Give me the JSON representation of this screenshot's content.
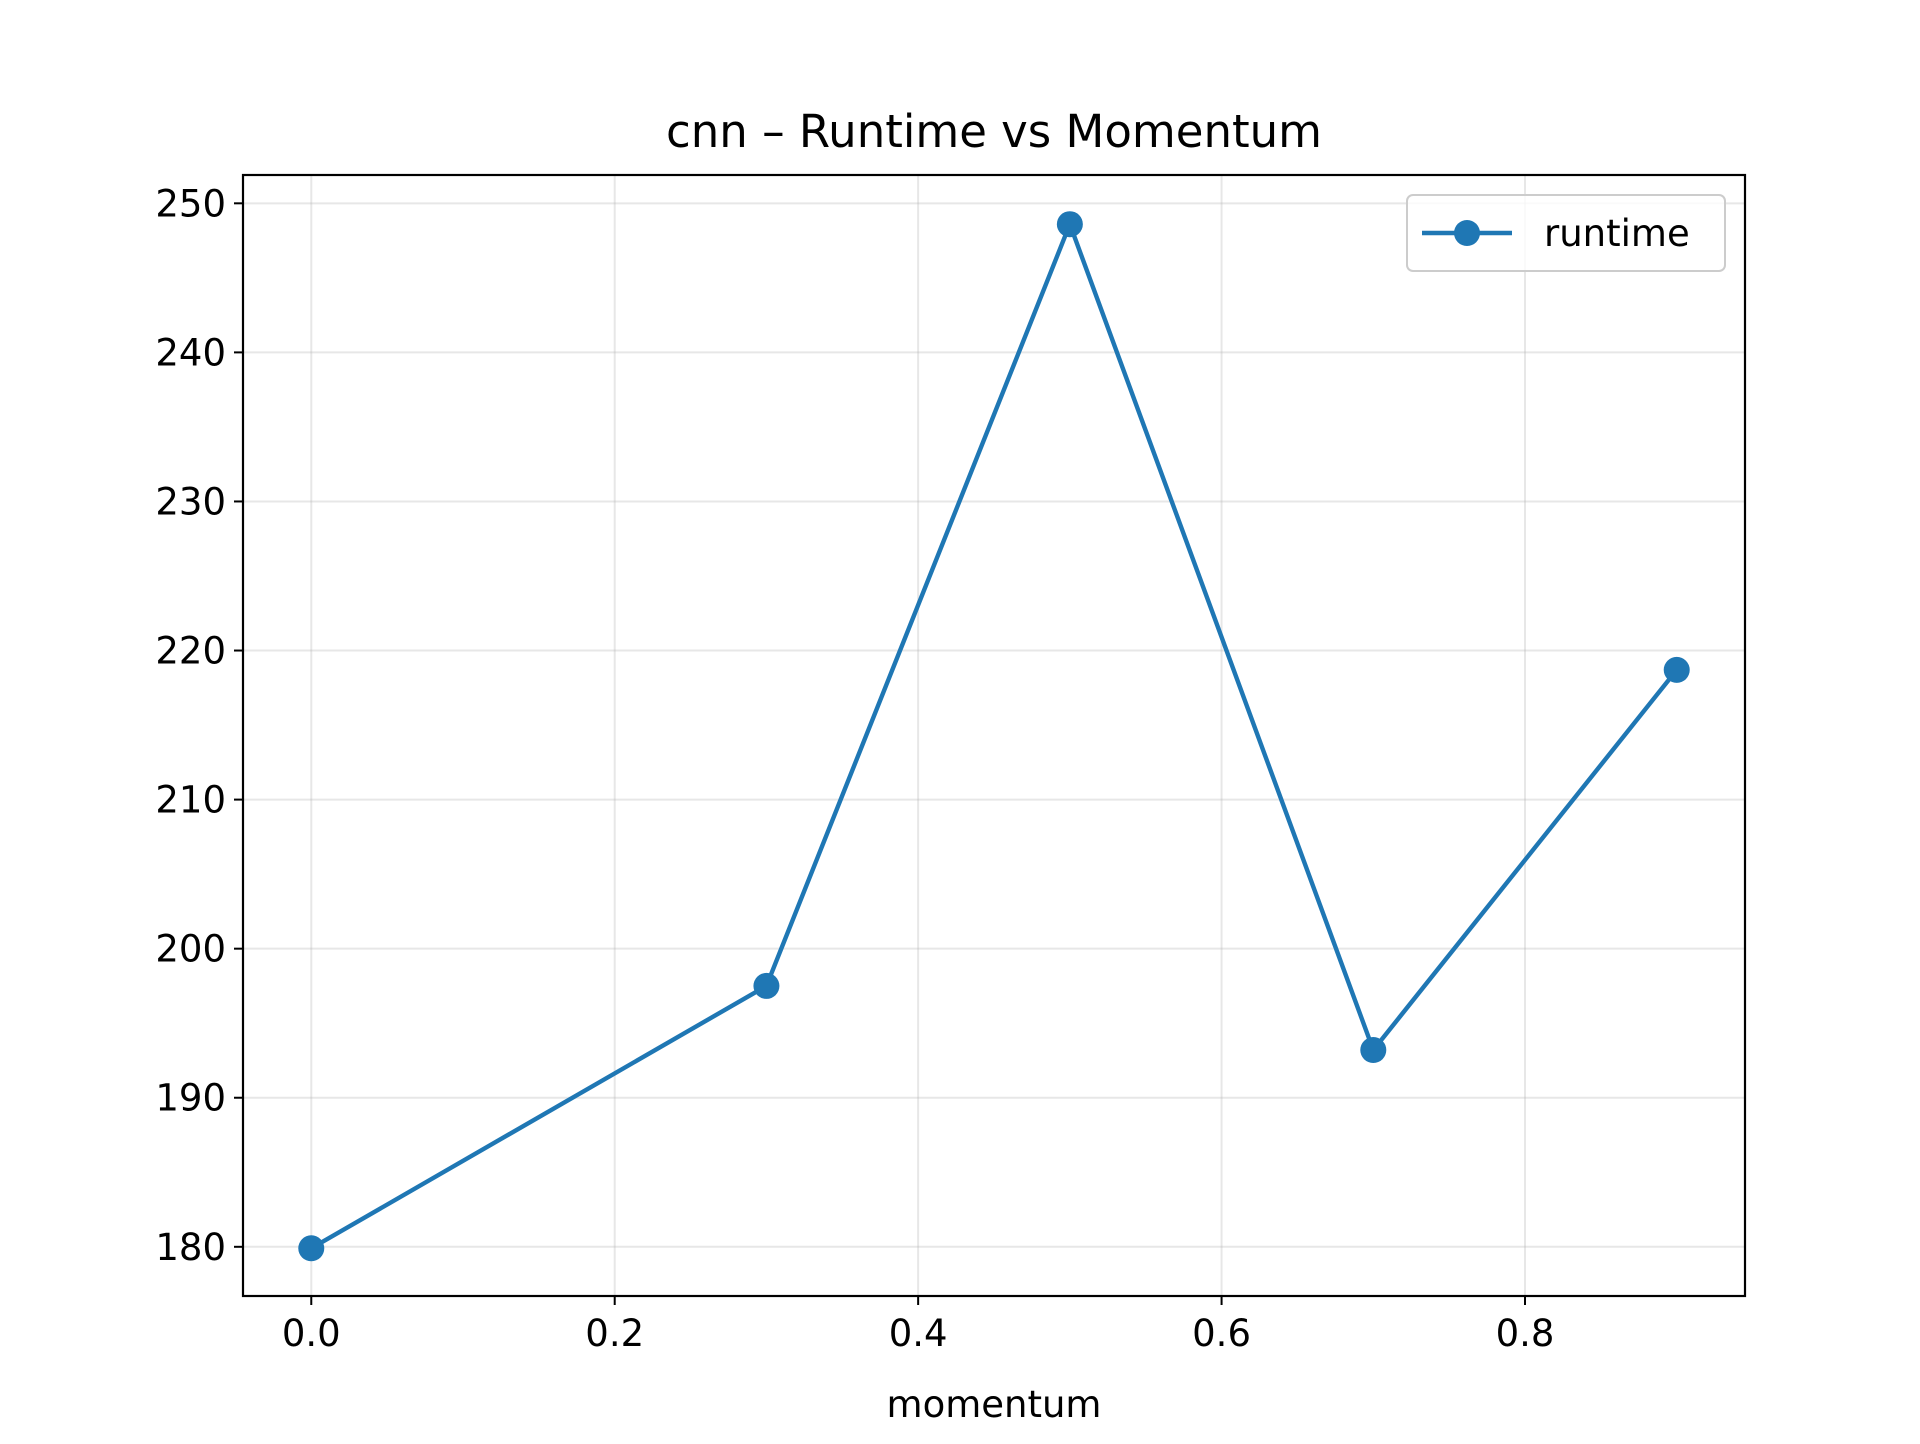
{
  "chart_data": {
    "type": "line",
    "title": "cnn – Runtime vs Momentum",
    "xlabel": "momentum",
    "ylabel": "",
    "x": [
      0.0,
      0.3,
      0.5,
      0.7,
      0.9
    ],
    "series": [
      {
        "name": "runtime",
        "values": [
          179.9,
          197.5,
          248.6,
          193.2,
          218.7
        ],
        "color": "#1f77b4",
        "marker": "circle"
      }
    ],
    "xlim": [
      -0.045,
      0.945
    ],
    "ylim": [
      176.7,
      251.9
    ],
    "xticks": [
      0.0,
      0.2,
      0.4,
      0.6,
      0.8
    ],
    "xtick_labels": [
      "0.0",
      "0.2",
      "0.4",
      "0.6",
      "0.8"
    ],
    "yticks": [
      180,
      190,
      200,
      210,
      220,
      230,
      240,
      250
    ],
    "ytick_labels": [
      "180",
      "190",
      "200",
      "210",
      "220",
      "230",
      "240",
      "250"
    ],
    "grid": true,
    "legend": "top-right"
  }
}
